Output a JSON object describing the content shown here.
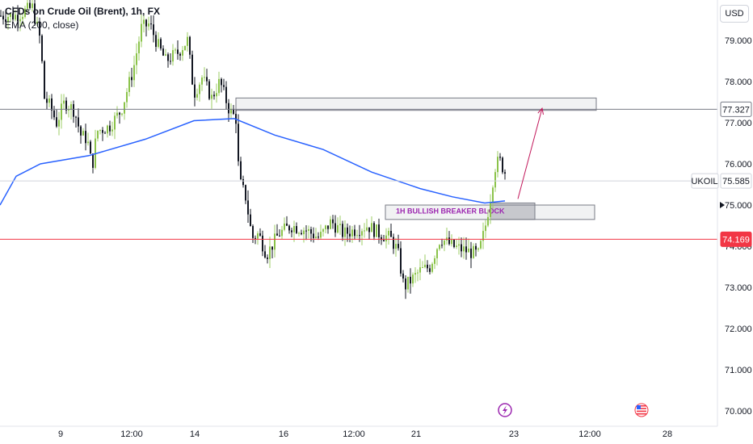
{
  "header": {
    "symbol_title": "CFDs on Crude Oil (Brent), 1h, FX",
    "indicator": "EMA (200, close)",
    "currency": "USD"
  },
  "annotations": {
    "zone_label": "1H BULLISH BREAKER BLOCK",
    "symbol_tag": "UKOIL",
    "symbol_price": "75.585",
    "upper_level": "77.327",
    "lower_level": "74.169"
  },
  "colors": {
    "ema": "#2962ff",
    "candle_up": "#26a69a",
    "candle_down": "#131722",
    "level_line": "#787b86",
    "red_level": "#f23645",
    "arrow": "#c2185b",
    "zone_text": "#9c27b0"
  },
  "icons": [
    "lightning-event-icon",
    "us-flag-event-icon",
    "play-marker-icon"
  ],
  "chart_data": {
    "type": "candlestick",
    "title": "CFDs on Crude Oil (Brent), 1h, FX",
    "ylim": [
      69.9,
      80.3
    ],
    "y_ticks": [
      "79.000",
      "78.000",
      "77.000",
      "76.000",
      "75.000",
      "74.000",
      "73.000",
      "72.000",
      "71.000",
      "70.000"
    ],
    "x_ticks": [
      "9",
      "12:00",
      "14",
      "16",
      "12:00",
      "21",
      "23",
      "12:00",
      "28"
    ],
    "indicator": "EMA (200, close)",
    "ema_points": [
      [
        0,
        75.0
      ],
      [
        20,
        75.7
      ],
      [
        50,
        76.0
      ],
      [
        110,
        76.2
      ],
      [
        180,
        76.6
      ],
      [
        240,
        77.05
      ],
      [
        290,
        77.1
      ],
      [
        340,
        76.7
      ],
      [
        400,
        76.35
      ],
      [
        460,
        75.8
      ],
      [
        520,
        75.4
      ],
      [
        560,
        75.2
      ],
      [
        600,
        75.05
      ],
      [
        625,
        75.1
      ]
    ],
    "price_path": [
      [
        0,
        79.6
      ],
      [
        20,
        79.6
      ],
      [
        40,
        79.8
      ],
      [
        50,
        79.0
      ],
      [
        55,
        77.6
      ],
      [
        62,
        77.4
      ],
      [
        70,
        77.0
      ],
      [
        80,
        77.5
      ],
      [
        92,
        77.3
      ],
      [
        100,
        76.7
      ],
      [
        108,
        76.6
      ],
      [
        114,
        75.9
      ],
      [
        120,
        76.8
      ],
      [
        135,
        76.9
      ],
      [
        150,
        77.3
      ],
      [
        165,
        78.3
      ],
      [
        175,
        79.3
      ],
      [
        185,
        79.4
      ],
      [
        195,
        78.9
      ],
      [
        205,
        78.5
      ],
      [
        220,
        78.7
      ],
      [
        232,
        79.0
      ],
      [
        240,
        77.7
      ],
      [
        250,
        78.1
      ],
      [
        262,
        77.6
      ],
      [
        272,
        78.0
      ],
      [
        284,
        77.3
      ],
      [
        292,
        77.1
      ],
      [
        296,
        75.6
      ],
      [
        304,
        75.2
      ],
      [
        312,
        74.2
      ],
      [
        320,
        74.3
      ],
      [
        330,
        73.8
      ],
      [
        345,
        74.3
      ],
      [
        360,
        74.5
      ],
      [
        378,
        74.4
      ],
      [
        395,
        74.2
      ],
      [
        410,
        74.6
      ],
      [
        425,
        74.3
      ],
      [
        440,
        74.4
      ],
      [
        455,
        74.5
      ],
      [
        470,
        74.3
      ],
      [
        483,
        74.2
      ],
      [
        492,
        73.9
      ],
      [
        500,
        73.0
      ],
      [
        510,
        73.2
      ],
      [
        520,
        73.4
      ],
      [
        532,
        73.5
      ],
      [
        545,
        74.2
      ],
      [
        560,
        74.0
      ],
      [
        575,
        73.9
      ],
      [
        592,
        73.8
      ],
      [
        600,
        74.4
      ],
      [
        608,
        75.3
      ],
      [
        612,
        75.9
      ],
      [
        618,
        76.1
      ],
      [
        625,
        75.8
      ]
    ],
    "levels": [
      77.327,
      74.169,
      75.585
    ],
    "zones": [
      {
        "from_x": 292,
        "to_x": 738,
        "top": 77.6,
        "bottom": 77.3
      },
      {
        "from_x": 477,
        "to_x": 736,
        "top": 75.0,
        "bottom": 74.65
      },
      {
        "from_x": 607,
        "to_x": 662,
        "top": 75.05,
        "bottom": 74.65
      }
    ],
    "arrow": {
      "from": [
        641,
        75.15
      ],
      "to": [
        671,
        77.35
      ]
    }
  }
}
